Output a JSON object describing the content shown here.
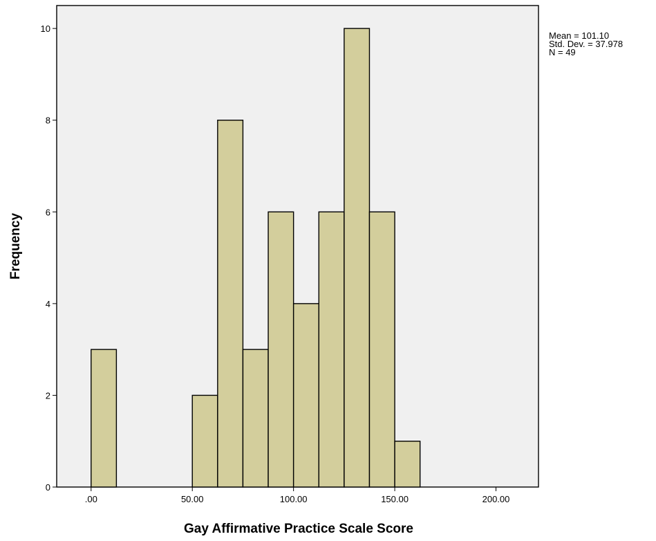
{
  "chart_data": {
    "type": "bar",
    "subtype": "histogram",
    "xlabel": "Gay Affirmative Practice Scale Score",
    "ylabel": "Frequency",
    "xlim": [
      -17,
      221
    ],
    "ylim": [
      0,
      10.5
    ],
    "x_ticks": [
      0,
      50,
      100,
      150,
      200
    ],
    "x_tick_labels": [
      ".00",
      "50.00",
      "100.00",
      "150.00",
      "200.00"
    ],
    "y_ticks": [
      0,
      2,
      4,
      6,
      8,
      10
    ],
    "y_tick_labels": [
      "0",
      "2",
      "4",
      "6",
      "8",
      "10"
    ],
    "bin_width": 12.5,
    "bins": [
      {
        "start": 0,
        "end": 12.5,
        "count": 3
      },
      {
        "start": 50,
        "end": 62.5,
        "count": 2
      },
      {
        "start": 62.5,
        "end": 75,
        "count": 8
      },
      {
        "start": 75,
        "end": 87.5,
        "count": 3
      },
      {
        "start": 87.5,
        "end": 100,
        "count": 6
      },
      {
        "start": 100,
        "end": 112.5,
        "count": 4
      },
      {
        "start": 112.5,
        "end": 125,
        "count": 6
      },
      {
        "start": 125,
        "end": 137.5,
        "count": 10
      },
      {
        "start": 137.5,
        "end": 150,
        "count": 6
      },
      {
        "start": 150,
        "end": 162.5,
        "count": 1
      }
    ],
    "stats": [
      "Mean = 101.10",
      "Std. Dev. = 37.978",
      "N = 49"
    ],
    "grid": false,
    "colors": {
      "bar": "#d3ce9c",
      "plot_background": "#f0f0f0",
      "outline": "#000000"
    }
  }
}
